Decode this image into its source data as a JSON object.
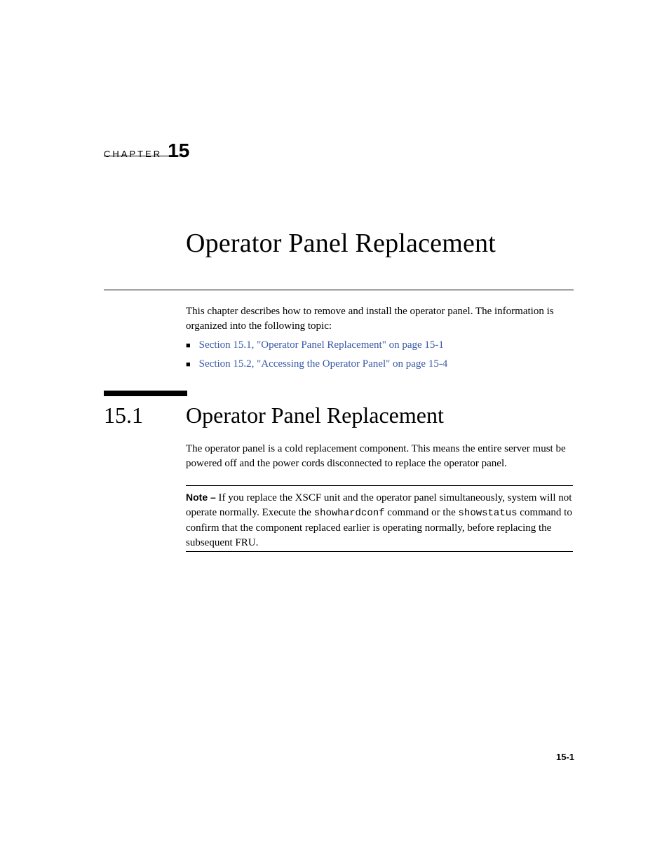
{
  "chapter": {
    "label": "CHAPTER",
    "number": "15",
    "title": "Operator Panel Replacement"
  },
  "intro": "This chapter describes how to remove and install the operator panel. The information is organized into the following topic:",
  "bullets": [
    {
      "text": "Section 15.1, \"Operator Panel Replacement\" on page 15-1"
    },
    {
      "text": "Section 15.2, \"Accessing the Operator Panel\" on page 15-4"
    }
  ],
  "section": {
    "number": "15.1",
    "title": "Operator Panel Replacement",
    "body": "The operator panel is a cold replacement component. This means the entire server must be powered off and the power cords disconnected to replace the operator panel."
  },
  "note": {
    "label": "Note –",
    "part1": " If you replace the XSCF unit and the operator panel simultaneously, system will not operate normally. Execute the ",
    "cmd1": "showhardconf",
    "part2": " command or the ",
    "cmd2": "showstatus",
    "part3": " command to confirm that the component replaced earlier is operating normally, before replacing the subsequent FRU."
  },
  "page_number": "15-1",
  "colors": {
    "link": "#3556a6",
    "text": "#000000",
    "background": "#ffffff"
  },
  "typography": {
    "body_font": "Palatino",
    "sans_font": "Helvetica",
    "mono_font": "Courier",
    "chapter_title_size_pt": 28,
    "section_title_size_pt": 24,
    "body_size_pt": 11
  }
}
